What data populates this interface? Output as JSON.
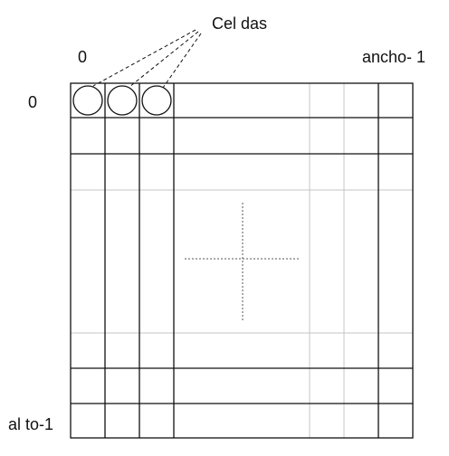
{
  "labels": {
    "cells": "Cel das",
    "x_origin": "0",
    "width_max": "ancho- 1",
    "y_origin": "0",
    "height_max": "al to-1"
  },
  "colors": {
    "line": "#111111",
    "faint_line": "#bfbfbf",
    "dotted": "#555555"
  }
}
